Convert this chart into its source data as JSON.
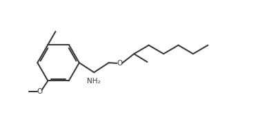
{
  "background_color": "#ffffff",
  "line_color": "#3a3a3a",
  "line_width": 1.5,
  "text_color": "#3a3a3a",
  "nh2_label": "NH₂",
  "o_label": "O",
  "o_methoxy_label": "O",
  "figsize": [
    3.87,
    1.86
  ],
  "dpi": 100
}
